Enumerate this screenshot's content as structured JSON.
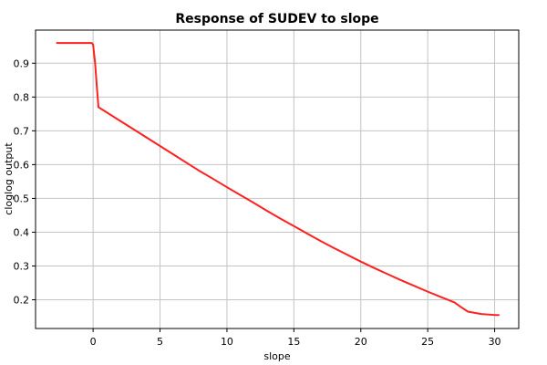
{
  "chart_data": {
    "type": "line",
    "title": "Response of SUDEV to slope",
    "xlabel": "slope",
    "ylabel": "cloglog output",
    "xlim": [
      -4.3,
      31.8
    ],
    "ylim": [
      0.115,
      0.998
    ],
    "xticks": [
      0,
      5,
      10,
      15,
      20,
      25,
      30
    ],
    "yticks": [
      0.2,
      0.3,
      0.4,
      0.5,
      0.6,
      0.7,
      0.8,
      0.9
    ],
    "grid": true,
    "series": [
      {
        "color": "#ff2020",
        "x": [
          -2.7,
          -0.1,
          0.0,
          0.15,
          0.3,
          0.4,
          1.0,
          2.0,
          3.0,
          4.0,
          5.0,
          6.0,
          7.0,
          8.0,
          9.0,
          10.0,
          11.0,
          12.0,
          13.0,
          14.0,
          15.0,
          16.0,
          17.0,
          18.0,
          19.0,
          20.0,
          21.0,
          22.0,
          23.0,
          24.0,
          25.0,
          26.0,
          27.0,
          27.5,
          28.0,
          29.0,
          30.0,
          30.3
        ],
        "y": [
          0.96,
          0.96,
          0.955,
          0.9,
          0.82,
          0.77,
          0.755,
          0.73,
          0.705,
          0.68,
          0.655,
          0.63,
          0.605,
          0.58,
          0.557,
          0.533,
          0.51,
          0.487,
          0.463,
          0.44,
          0.418,
          0.396,
          0.374,
          0.353,
          0.333,
          0.313,
          0.294,
          0.276,
          0.258,
          0.241,
          0.224,
          0.208,
          0.192,
          0.178,
          0.165,
          0.158,
          0.155,
          0.155
        ]
      }
    ]
  }
}
